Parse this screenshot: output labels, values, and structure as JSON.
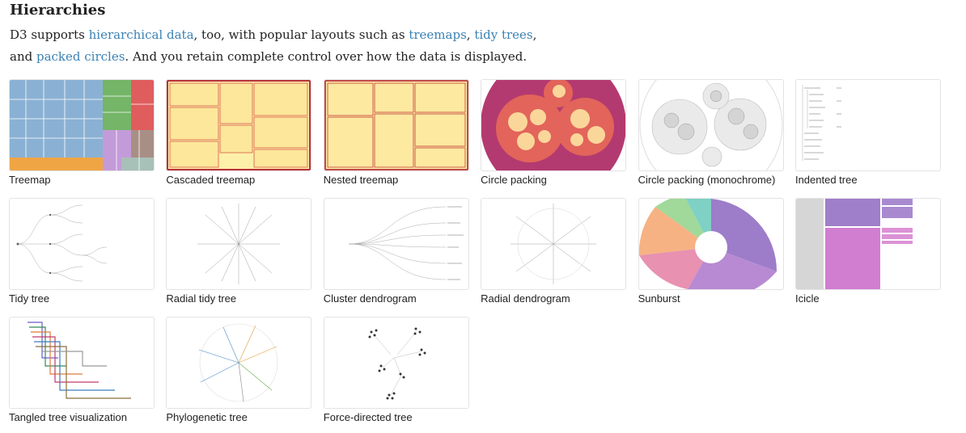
{
  "section": {
    "heading": "Hierarchies",
    "intro": {
      "t1": "D3 supports ",
      "l1": "hierarchical data",
      "t2": ", too, with popular layouts such as ",
      "l2": "treemaps",
      "t3": ", ",
      "l3": "tidy trees",
      "t4": ",",
      "t5": "and ",
      "l4": "packed circles",
      "t6": ". And you retain complete control over how the data is displayed."
    },
    "link_color": "#3b82b4"
  },
  "examples": [
    {
      "label": "Treemap"
    },
    {
      "label": "Cascaded treemap"
    },
    {
      "label": "Nested treemap"
    },
    {
      "label": "Circle packing"
    },
    {
      "label": "Circle packing (monochrome)"
    },
    {
      "label": "Indented tree"
    },
    {
      "label": "Tidy tree"
    },
    {
      "label": "Radial tidy tree"
    },
    {
      "label": "Cluster dendrogram"
    },
    {
      "label": "Radial dendrogram"
    },
    {
      "label": "Sunburst"
    },
    {
      "label": "Icicle"
    },
    {
      "label": "Tangled tree visualization"
    },
    {
      "label": "Phylogenetic tree"
    },
    {
      "label": "Force-directed tree"
    }
  ]
}
